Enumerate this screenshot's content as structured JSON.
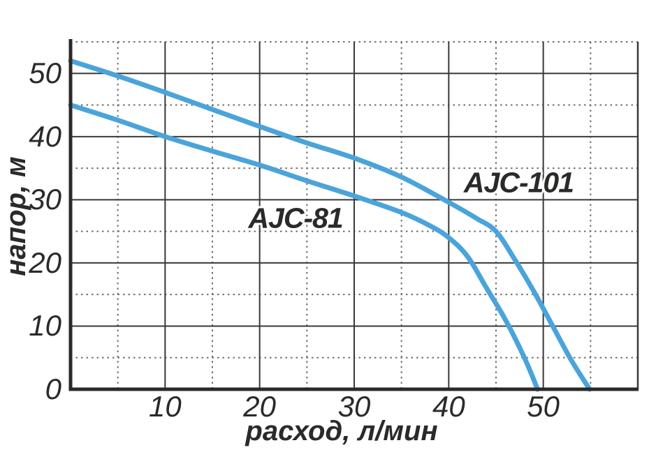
{
  "chart_data": {
    "type": "line",
    "title": "",
    "xlabel": "расход, л/мин",
    "ylabel": "напор, м",
    "xlim": [
      0,
      60
    ],
    "ylim": [
      0,
      55
    ],
    "x_major_ticks": [
      10,
      20,
      30,
      40,
      50
    ],
    "x_minor_ticks": [
      5,
      15,
      25,
      35,
      45,
      55
    ],
    "y_major_ticks": [
      0,
      10,
      20,
      30,
      40,
      50
    ],
    "y_minor_ticks": [
      5,
      15,
      25,
      35,
      45,
      55
    ],
    "y_labeled_ticks": [
      0,
      10,
      20,
      30,
      40,
      50
    ],
    "x_labeled_ticks": [
      10,
      20,
      30,
      40,
      50
    ],
    "grid": {
      "major_style": "solid",
      "minor_style": "dotted"
    },
    "legend_position": "inline-annotations",
    "series": [
      {
        "name": "AJC-101",
        "points": [
          [
            0,
            52
          ],
          [
            5,
            49.6
          ],
          [
            10,
            47
          ],
          [
            15,
            44.3
          ],
          [
            20,
            41.6
          ],
          [
            25,
            39
          ],
          [
            30,
            36.6
          ],
          [
            35,
            33.6
          ],
          [
            40,
            29.6
          ],
          [
            43,
            27
          ],
          [
            45,
            25
          ],
          [
            47,
            20.5
          ],
          [
            49,
            15.5
          ],
          [
            51,
            10
          ],
          [
            53,
            4.5
          ],
          [
            54.9,
            0
          ]
        ],
        "label": {
          "text": "AJC-101",
          "x": 47.4,
          "y": 32.7
        }
      },
      {
        "name": "AJC-81",
        "points": [
          [
            0,
            45
          ],
          [
            5,
            42.6
          ],
          [
            10,
            40
          ],
          [
            15,
            37.7
          ],
          [
            20,
            35.5
          ],
          [
            25,
            33
          ],
          [
            30,
            30.6
          ],
          [
            35,
            28
          ],
          [
            38,
            25.9
          ],
          [
            40,
            24
          ],
          [
            42,
            21
          ],
          [
            44,
            16
          ],
          [
            46,
            11
          ],
          [
            48,
            5
          ],
          [
            49.4,
            0
          ]
        ],
        "label": {
          "text": "AJC-81",
          "x": 23.8,
          "y": 27.1
        }
      }
    ],
    "colors": {
      "curve": "#4aa4da",
      "axis": "#2b2a29",
      "grid_major": "#3a3938",
      "grid_minor": "#6e6d6c",
      "text": "#2b2a29",
      "background": "#ffffff"
    }
  }
}
